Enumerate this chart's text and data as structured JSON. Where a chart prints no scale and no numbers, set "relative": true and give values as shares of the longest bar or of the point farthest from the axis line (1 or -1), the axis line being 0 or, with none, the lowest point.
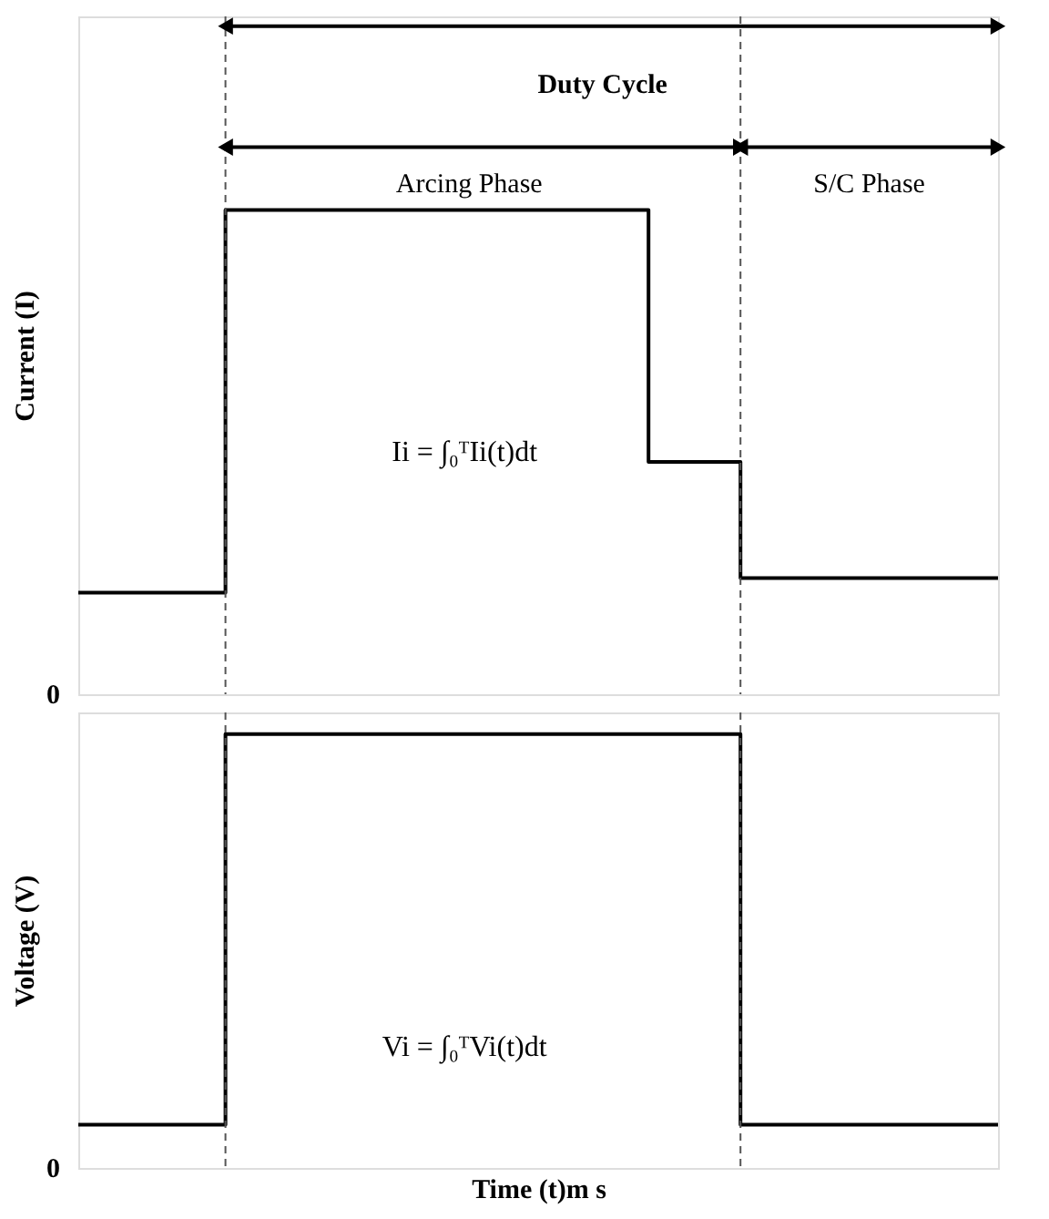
{
  "chart_data": [
    {
      "type": "step",
      "relative": true,
      "ylabel": "Current (I)",
      "color": "#000000",
      "categories": [
        null,
        null,
        null,
        null,
        null,
        null,
        null,
        null,
        null,
        null,
        null,
        null,
        null,
        null,
        null,
        null,
        null,
        null,
        null,
        null,
        null,
        null,
        null,
        null,
        null,
        null,
        null,
        null,
        null,
        null,
        null,
        null,
        null,
        null,
        null,
        null,
        null,
        null,
        null,
        null,
        null,
        null,
        null,
        null,
        null,
        null,
        null,
        null,
        null,
        null,
        null
      ],
      "values": [
        0.21,
        0.21,
        0.21,
        0.21,
        0.21,
        0.21,
        0.21,
        0.21,
        1,
        1,
        1,
        1,
        1,
        1,
        1,
        1,
        1,
        1,
        1,
        1,
        1,
        1,
        1,
        1,
        1,
        1,
        1,
        1,
        1,
        1,
        1,
        0.48,
        0.48,
        0.48,
        0.48,
        0.48,
        0.24,
        0.24,
        0.24,
        0.24,
        0.24,
        0.24,
        0.24,
        0.24,
        0.24,
        0.24,
        0.24,
        0.24,
        0.24,
        0.24,
        0.24
      ],
      "annotations": [
        "Duty Cycle",
        "Arcing Phase",
        "S/C Phase",
        "Ii = ∫₀ᵀIi(t)dt",
        "0"
      ]
    },
    {
      "type": "step",
      "relative": true,
      "ylabel": "Voltage (V)",
      "xlabel": "Time (t)m s",
      "color": "#000000",
      "categories": [
        null,
        null,
        null,
        null,
        null,
        null,
        null,
        null,
        null,
        null,
        null,
        null,
        null,
        null,
        null,
        null,
        null,
        null,
        null,
        null,
        null,
        null,
        null,
        null,
        null,
        null,
        null,
        null,
        null,
        null,
        null,
        null,
        null,
        null,
        null,
        null,
        null,
        null,
        null,
        null,
        null,
        null,
        null,
        null,
        null,
        null,
        null,
        null,
        null,
        null,
        null
      ],
      "values": [
        0.1,
        0.1,
        0.1,
        0.1,
        0.1,
        0.1,
        0.1,
        0.1,
        1,
        1,
        1,
        1,
        1,
        1,
        1,
        1,
        1,
        1,
        1,
        1,
        1,
        1,
        1,
        1,
        1,
        1,
        1,
        1,
        1,
        1,
        1,
        1,
        1,
        1,
        1,
        1,
        0.1,
        0.1,
        0.1,
        0.1,
        0.1,
        0.1,
        0.1,
        0.1,
        0.1,
        0.1,
        0.1,
        0.1,
        0.1,
        0.1,
        0.1
      ],
      "annotations": [
        "Vi = ∫₀ᵀVi(t)dt",
        "0"
      ]
    }
  ]
}
